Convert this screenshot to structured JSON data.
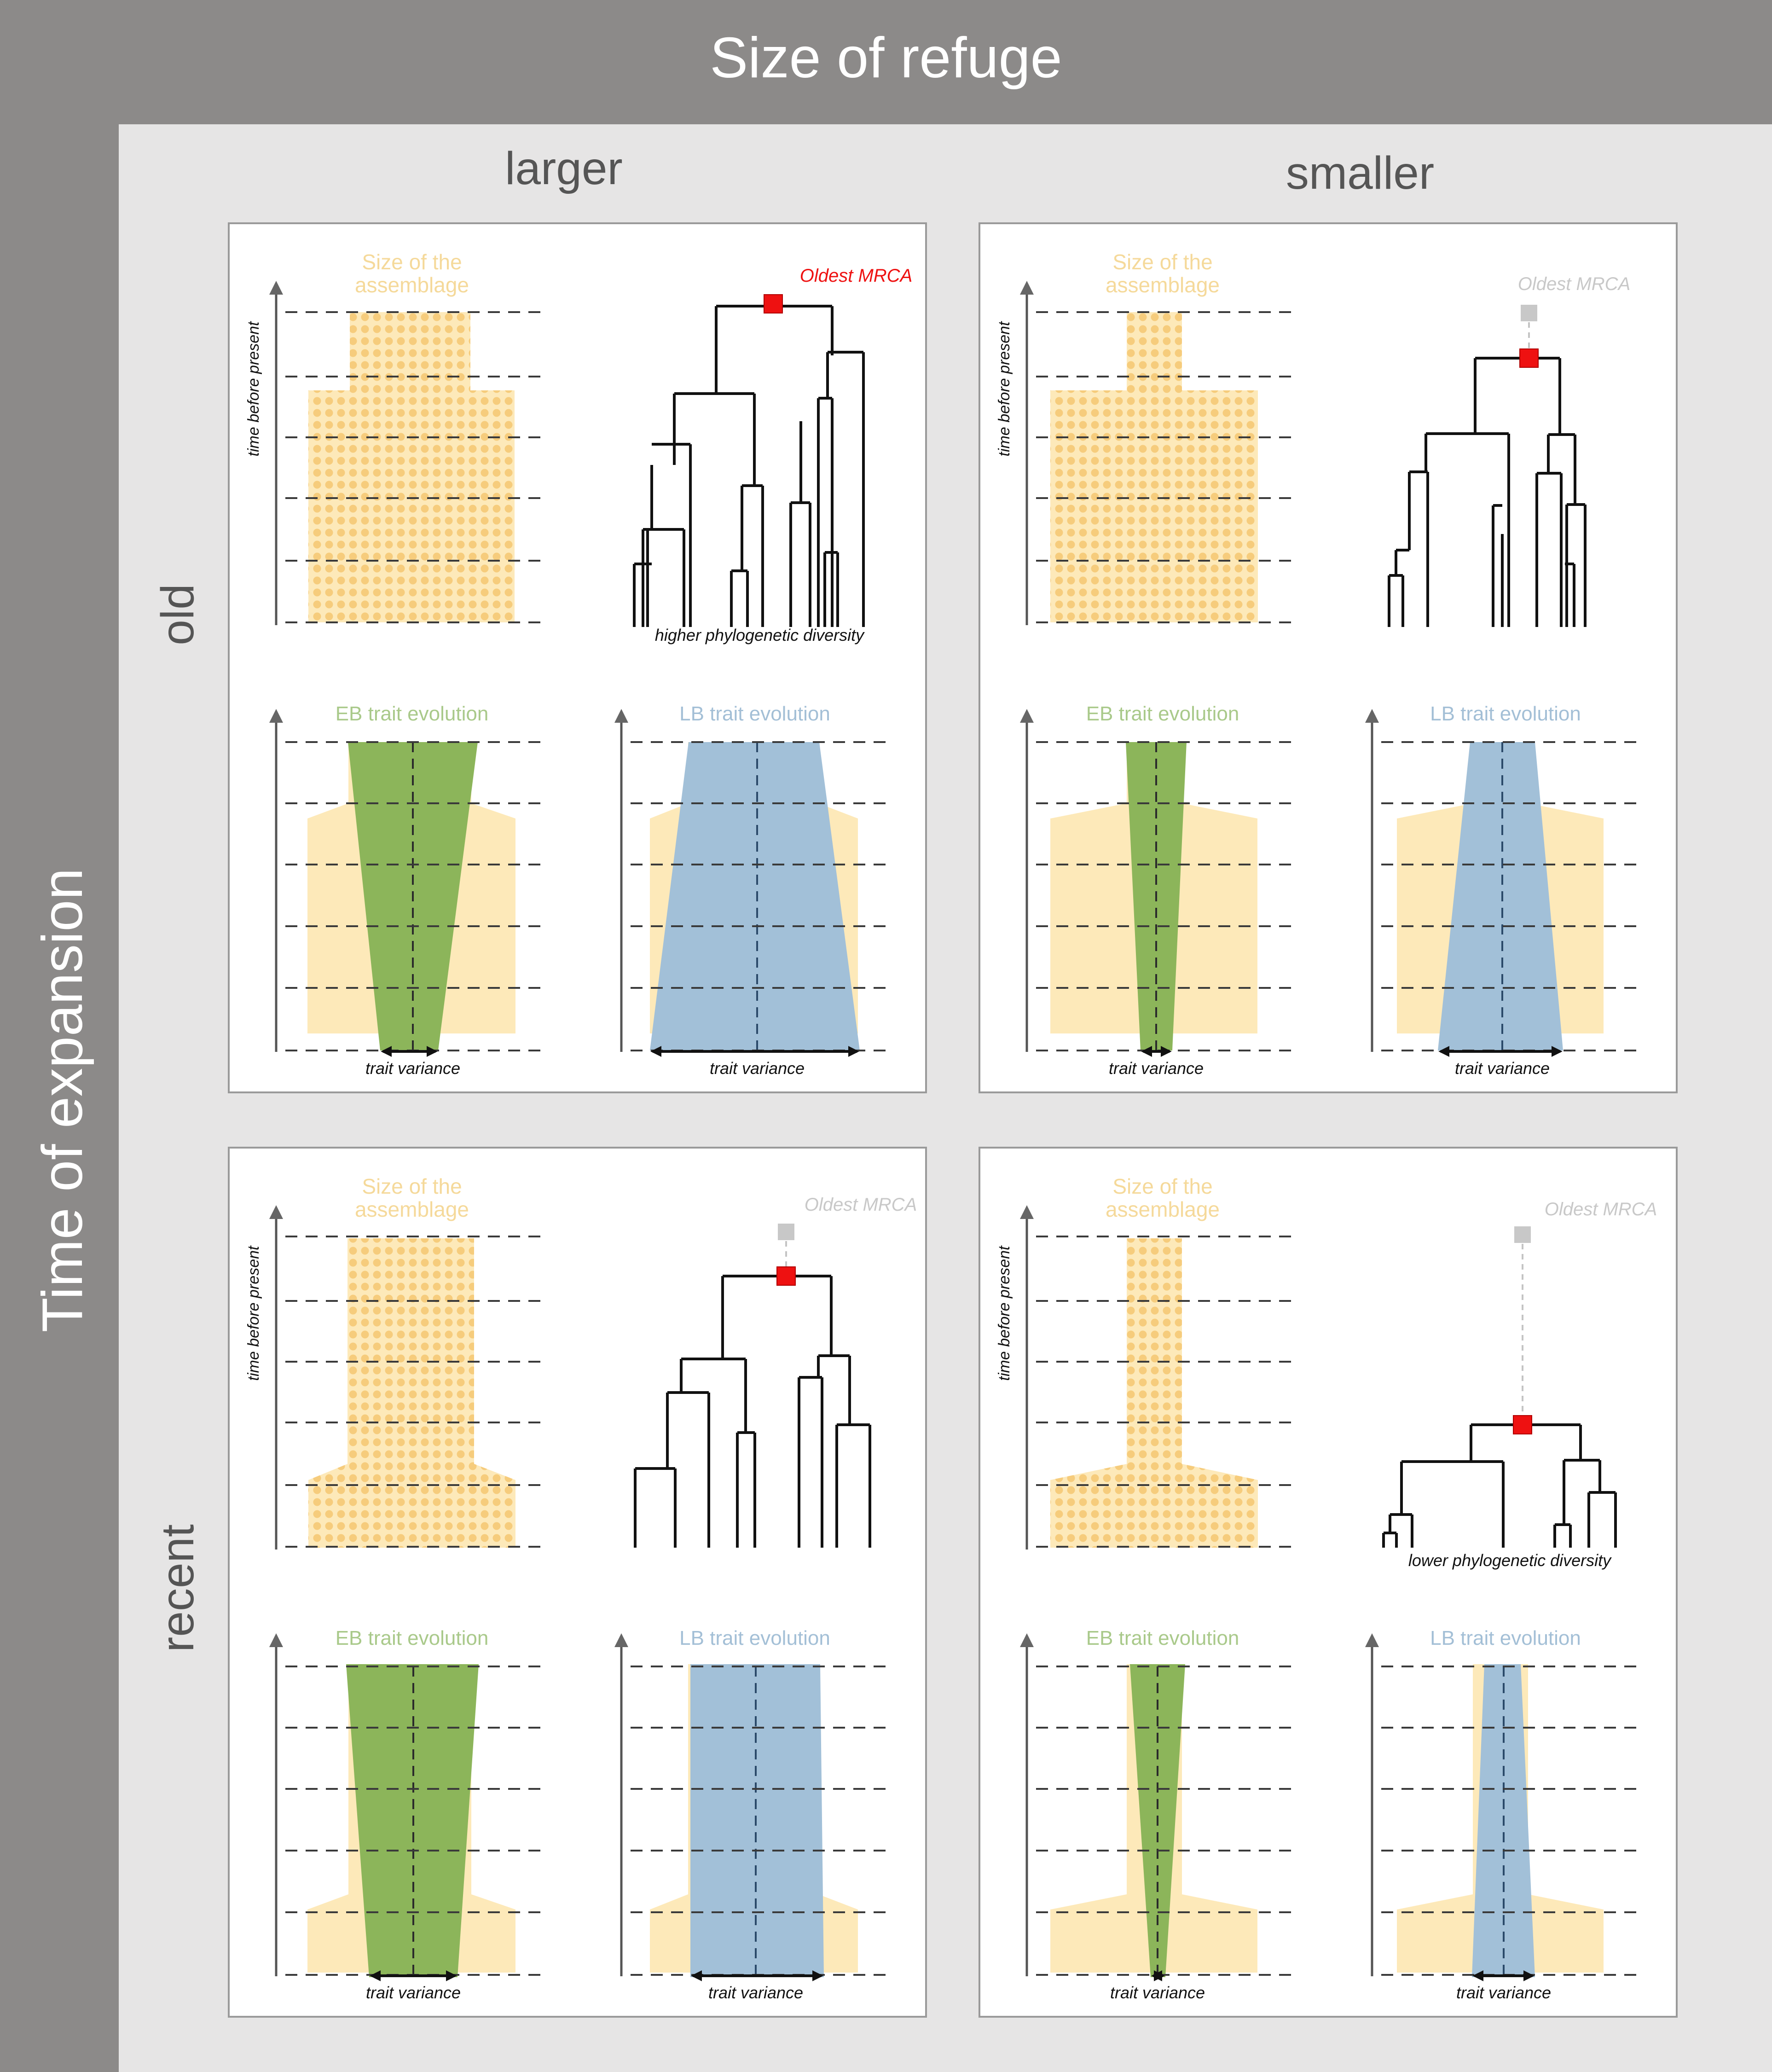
{
  "title": "Size of refuge",
  "row_axis_title": "Time of expansion",
  "columns": [
    "larger",
    "smaller"
  ],
  "rows": [
    "old",
    "recent"
  ],
  "labels": {
    "assemblage_line1": "Size of the",
    "assemblage_line2": "assemblage",
    "time_axis": "time before present",
    "oldest_mrca": "Oldest MRCA",
    "eb": "EB trait evolution",
    "lb": "LB trait evolution",
    "trait_variance": "trait variance",
    "higher_pd": "higher phylogenetic diversity",
    "lower_pd": "lower phylogenetic diversity"
  },
  "colors": {
    "frame_gray": "#8c8a89",
    "panel_bg": "#e6e5e5",
    "assemblage": "#fde9b9",
    "dot": "#f6cc7c",
    "eb_green": "#8cb55a",
    "lb_blue": "#a2c0d8",
    "mrca_red": "#ee1111",
    "mrca_gray": "#c8c8c8"
  }
}
